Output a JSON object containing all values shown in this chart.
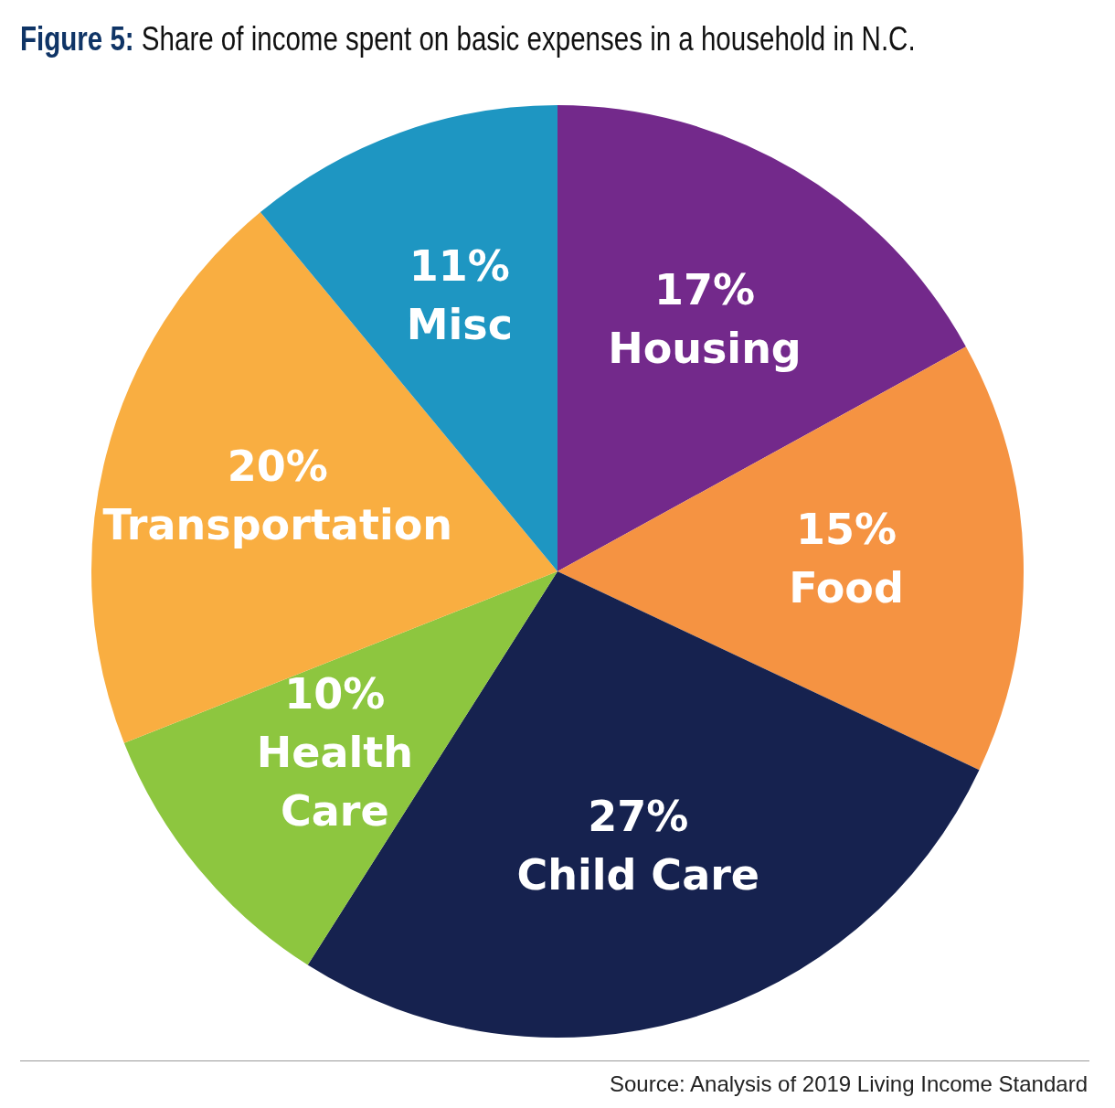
{
  "chart_data": {
    "type": "pie",
    "title": "Figure 5: Share of income spent on basic expenses in a household in N.C.",
    "categories": [
      "Housing",
      "Food",
      "Child Care",
      "Health Care",
      "Transportation",
      "Misc"
    ],
    "values": [
      17,
      15,
      27,
      10,
      20,
      11
    ],
    "value_labels": [
      "17%",
      "15%",
      "27%",
      "10%",
      "20%",
      "11%"
    ],
    "colors": [
      "#73298b",
      "#f59342",
      "#16224f",
      "#8dc63f",
      "#f9ae41",
      "#1e96c2"
    ],
    "legend": false,
    "annotations": [
      "Source: Analysis of 2019 Living Income Standard"
    ]
  }
}
